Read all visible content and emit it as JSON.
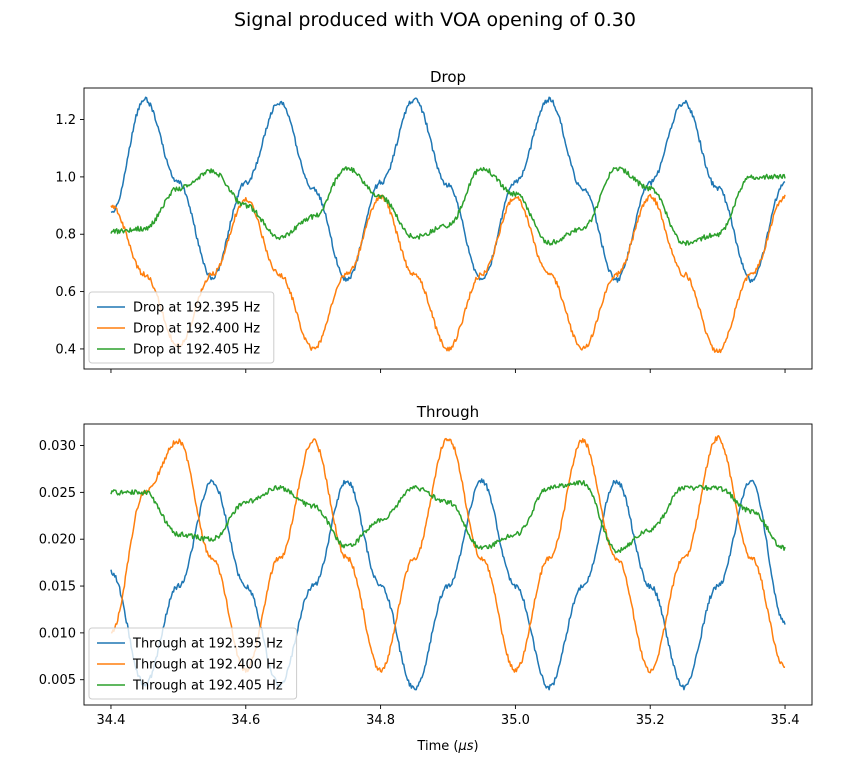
{
  "figure": {
    "title": "Signal produced with VOA opening of 0.30",
    "xlabel_prefix": "Time (",
    "xlabel_symbol": "μs",
    "xlabel_suffix": ")"
  },
  "colors": {
    "blue": "#1f77b4",
    "orange": "#ff7f0e",
    "green": "#2ca02c"
  },
  "chart_data": [
    {
      "type": "line",
      "title": "Drop",
      "xlim": [
        34.36,
        35.44
      ],
      "ylim": [
        0.33,
        1.31
      ],
      "x_ticks": [
        34.4,
        34.6,
        34.8,
        35.0,
        35.2,
        35.4
      ],
      "x_ticklabels_visible": false,
      "y_ticks": [
        0.4,
        0.6,
        0.8,
        1.0,
        1.2
      ],
      "y_ticklabels": [
        "0.4",
        "0.6",
        "0.8",
        "1.0",
        "1.2"
      ],
      "legend": "lower-left",
      "series": [
        {
          "name": "Drop at 192.395 Hz",
          "color": "#1f77b4",
          "x_range": [
            34.4,
            35.4
          ],
          "x": [
            34.4,
            34.45,
            34.5,
            34.55,
            34.6,
            34.65,
            34.7,
            34.75,
            34.8,
            34.85,
            34.9,
            34.95,
            35.0,
            35.05,
            35.1,
            35.15,
            35.2,
            35.25,
            35.3,
            35.35,
            35.4
          ],
          "y": [
            0.87,
            1.27,
            0.98,
            0.65,
            0.98,
            1.26,
            0.96,
            0.64,
            0.98,
            1.27,
            0.97,
            0.64,
            0.98,
            1.27,
            0.96,
            0.64,
            0.98,
            1.26,
            0.96,
            0.64,
            0.98
          ]
        },
        {
          "name": "Drop at 192.400 Hz",
          "color": "#ff7f0e",
          "x_range": [
            34.4,
            35.4
          ],
          "x": [
            34.4,
            34.45,
            34.5,
            34.55,
            34.6,
            34.65,
            34.7,
            34.75,
            34.8,
            34.85,
            34.9,
            34.95,
            35.0,
            35.05,
            35.1,
            35.15,
            35.2,
            35.25,
            35.3,
            35.35,
            35.4
          ],
          "y": [
            0.9,
            0.66,
            0.41,
            0.66,
            0.92,
            0.66,
            0.4,
            0.66,
            0.93,
            0.66,
            0.4,
            0.66,
            0.93,
            0.66,
            0.4,
            0.66,
            0.93,
            0.66,
            0.39,
            0.66,
            0.93
          ]
        },
        {
          "name": "Drop at 192.405 Hz",
          "color": "#2ca02c",
          "x_range": [
            34.4,
            35.4
          ],
          "x": [
            34.4,
            34.45,
            34.5,
            34.55,
            34.6,
            34.65,
            34.7,
            34.75,
            34.8,
            34.85,
            34.9,
            34.95,
            35.0,
            35.05,
            35.1,
            35.15,
            35.2,
            35.25,
            35.3,
            35.35,
            35.4
          ],
          "y": [
            0.81,
            0.82,
            0.96,
            1.02,
            0.9,
            0.79,
            0.86,
            1.03,
            0.93,
            0.79,
            0.83,
            1.03,
            0.94,
            0.77,
            0.82,
            1.03,
            0.96,
            0.77,
            0.8,
            1.0,
            1.0
          ]
        }
      ]
    },
    {
      "type": "line",
      "title": "Through",
      "xlim": [
        34.36,
        35.44
      ],
      "ylim": [
        0.0023,
        0.0323
      ],
      "x_ticks": [
        34.4,
        34.6,
        34.8,
        35.0,
        35.2,
        35.4
      ],
      "x_ticklabels": [
        "34.4",
        "34.6",
        "34.8",
        "35.0",
        "35.2",
        "35.4"
      ],
      "y_ticks": [
        0.005,
        0.01,
        0.015,
        0.02,
        0.025,
        0.03
      ],
      "y_ticklabels": [
        "0.005",
        "0.010",
        "0.015",
        "0.020",
        "0.025",
        "0.030"
      ],
      "legend": "lower-left",
      "series": [
        {
          "name": "Through at 192.395 Hz",
          "color": "#1f77b4",
          "x_range": [
            34.4,
            35.4
          ],
          "x": [
            34.4,
            34.45,
            34.5,
            34.55,
            34.6,
            34.65,
            34.7,
            34.75,
            34.8,
            34.85,
            34.9,
            34.95,
            35.0,
            35.05,
            35.1,
            35.15,
            35.2,
            35.25,
            35.3,
            35.35,
            35.4
          ],
          "y": [
            0.0165,
            0.0045,
            0.015,
            0.0262,
            0.015,
            0.0045,
            0.015,
            0.0262,
            0.015,
            0.004,
            0.015,
            0.0262,
            0.015,
            0.0042,
            0.015,
            0.0262,
            0.015,
            0.0042,
            0.015,
            0.0262,
            0.011
          ]
        },
        {
          "name": "Through at 192.400 Hz",
          "color": "#ff7f0e",
          "x_range": [
            34.4,
            35.4
          ],
          "x": [
            34.4,
            34.45,
            34.5,
            34.55,
            34.6,
            34.65,
            34.7,
            34.75,
            34.8,
            34.85,
            34.9,
            34.95,
            35.0,
            35.05,
            35.1,
            35.15,
            35.2,
            35.25,
            35.3,
            35.35,
            35.4
          ],
          "y": [
            0.01,
            0.025,
            0.0305,
            0.018,
            0.006,
            0.018,
            0.0305,
            0.018,
            0.006,
            0.018,
            0.0308,
            0.018,
            0.006,
            0.018,
            0.0305,
            0.018,
            0.006,
            0.018,
            0.0308,
            0.018,
            0.0063
          ]
        },
        {
          "name": "Through at 192.405 Hz",
          "color": "#2ca02c",
          "x_range": [
            34.4,
            35.4
          ],
          "x": [
            34.4,
            34.45,
            34.5,
            34.55,
            34.6,
            34.65,
            34.7,
            34.75,
            34.8,
            34.85,
            34.9,
            34.95,
            35.0,
            35.05,
            35.1,
            35.15,
            35.2,
            35.25,
            35.3,
            35.35,
            35.4
          ],
          "y": [
            0.025,
            0.025,
            0.0205,
            0.02,
            0.024,
            0.0255,
            0.0235,
            0.0192,
            0.022,
            0.0255,
            0.024,
            0.019,
            0.0205,
            0.0255,
            0.026,
            0.0188,
            0.021,
            0.0255,
            0.0255,
            0.023,
            0.019
          ]
        }
      ]
    }
  ]
}
